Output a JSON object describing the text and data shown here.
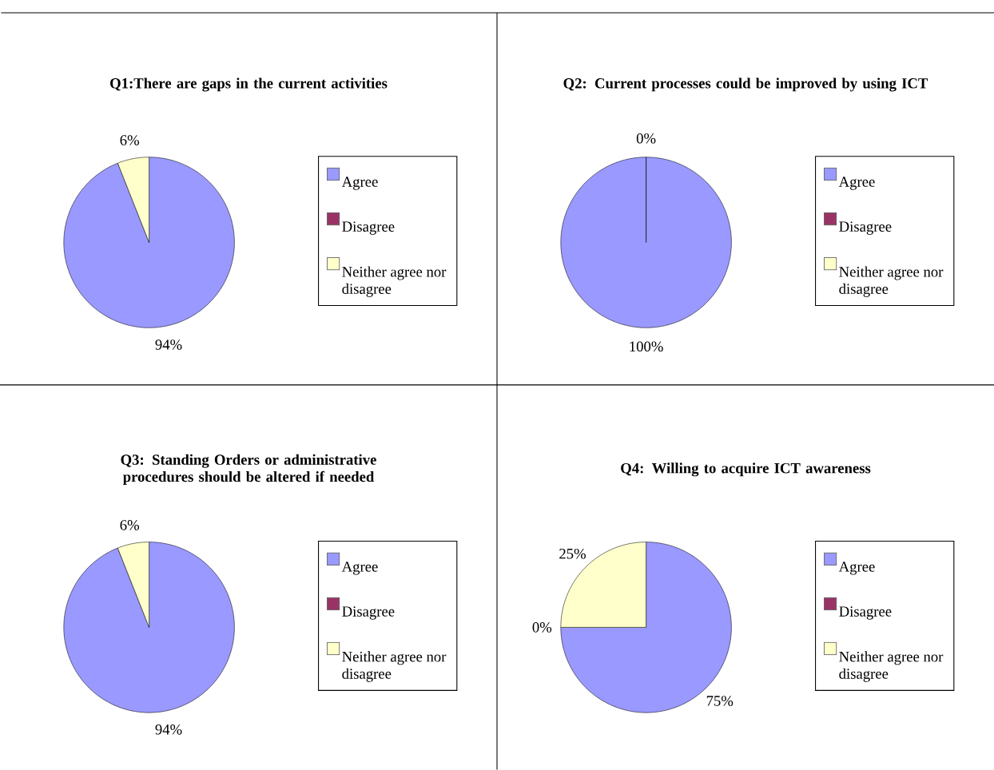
{
  "chart_data": [
    {
      "type": "pie",
      "title": "Q1:There are gaps in the current activities",
      "categories": [
        "Agree",
        "Disagree",
        "Neither agree nor disagree"
      ],
      "values": [
        94,
        0,
        6
      ],
      "colors": [
        "#9999ff",
        "#993366",
        "#ffffcc"
      ],
      "value_labels": [
        "94%",
        null,
        "6%"
      ],
      "legend": "right"
    },
    {
      "type": "pie",
      "title": "Q2: Current processes could be improved by using ICT",
      "categories": [
        "Agree",
        "Disagree",
        "Neither agree nor disagree"
      ],
      "values": [
        100,
        0,
        0
      ],
      "colors": [
        "#9999ff",
        "#993366",
        "#ffffcc"
      ],
      "value_labels": [
        "100%",
        "0%",
        null
      ],
      "legend": "right"
    },
    {
      "type": "pie",
      "title": "Q3: Standing Orders or administrative procedures should be altered if needed",
      "categories": [
        "Agree",
        "Disagree",
        "Neither agree nor disagree"
      ],
      "values": [
        94,
        0,
        6
      ],
      "colors": [
        "#9999ff",
        "#993366",
        "#ffffcc"
      ],
      "value_labels": [
        "94%",
        null,
        "6%"
      ],
      "legend": "right"
    },
    {
      "type": "pie",
      "title": "Q4: Willing to acquire ICT awareness",
      "categories": [
        "Agree",
        "Disagree",
        "Neither agree nor disagree"
      ],
      "values": [
        75,
        0,
        25
      ],
      "colors": [
        "#9999ff",
        "#993366",
        "#ffffcc"
      ],
      "value_labels": [
        "75%",
        "0%",
        "25%"
      ],
      "legend": "right"
    }
  ]
}
